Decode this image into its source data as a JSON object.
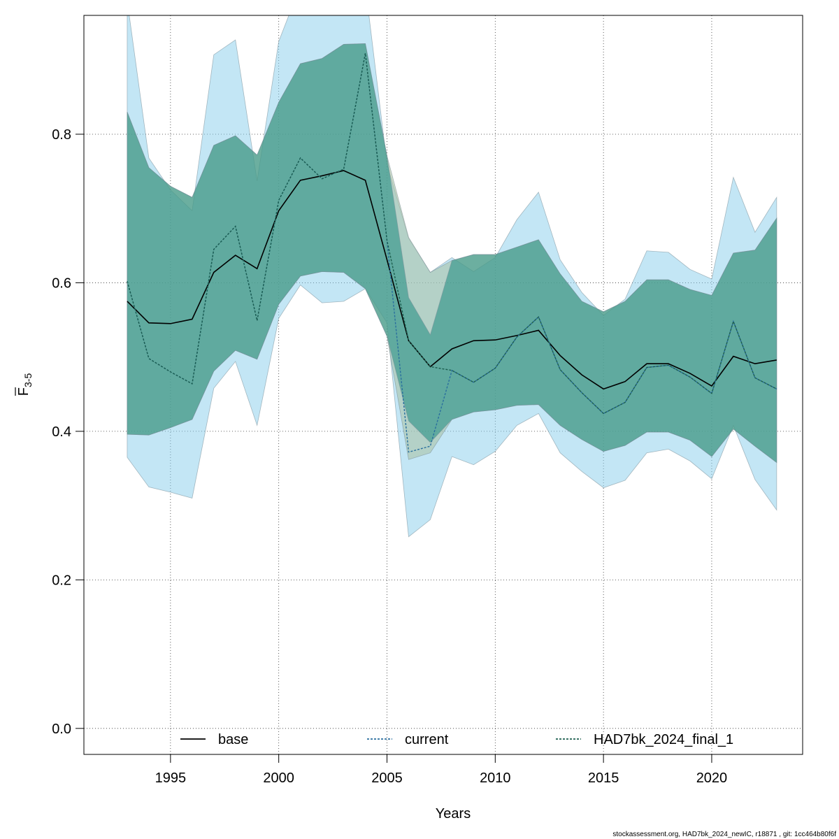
{
  "chart_data": {
    "type": "line",
    "xlabel": "Years",
    "ylabel_main": "F",
    "ylabel_sub": "3-5",
    "xlim": [
      1991.0,
      2024.2
    ],
    "ylim": [
      -0.035,
      0.96
    ],
    "xticks": [
      1995,
      2000,
      2005,
      2010,
      2015,
      2020
    ],
    "xtick_labels": [
      "1995",
      "2000",
      "2005",
      "2010",
      "2015",
      "2020"
    ],
    "yticks": [
      0.0,
      0.2,
      0.4,
      0.6,
      0.8
    ],
    "ytick_labels": [
      "0.0",
      "0.2",
      "0.4",
      "0.6",
      "0.8"
    ],
    "grid": true,
    "legend_position": "bottom",
    "x": [
      1993,
      1994,
      1995,
      1996,
      1997,
      1998,
      1999,
      2000,
      2001,
      2002,
      2003,
      2004,
      2005,
      2006,
      2007,
      2008,
      2009,
      2010,
      2011,
      2012,
      2013,
      2014,
      2015,
      2016,
      2017,
      2018,
      2019,
      2020,
      2021,
      2022,
      2023
    ],
    "bands": [
      {
        "name": "base",
        "color": "#87ceeb",
        "lower": [
          0.365,
          0.325,
          0.318,
          0.31,
          0.458,
          0.494,
          0.408,
          0.552,
          0.597,
          0.573,
          0.575,
          0.592,
          0.546,
          0.258,
          0.281,
          0.366,
          0.355,
          0.373,
          0.408,
          0.424,
          0.371,
          0.346,
          0.324,
          0.334,
          0.371,
          0.376,
          0.36,
          0.336,
          0.408,
          0.335,
          0.294
        ],
        "upper": [
          0.98,
          0.768,
          0.725,
          0.697,
          0.907,
          0.927,
          0.737,
          0.925,
          1.0,
          1.0,
          1.0,
          1.0,
          0.76,
          0.66,
          0.614,
          0.634,
          0.615,
          0.634,
          0.685,
          0.722,
          0.631,
          0.587,
          0.556,
          0.578,
          0.643,
          0.641,
          0.618,
          0.605,
          0.742,
          0.668,
          0.715
        ]
      },
      {
        "name": "current",
        "color": "#a7c0a0",
        "lower": [
          0.396,
          0.395,
          0.405,
          0.416,
          0.481,
          0.509,
          0.497,
          0.571,
          0.609,
          0.615,
          0.614,
          0.592,
          0.528,
          0.362,
          0.371,
          0.416,
          0.426,
          0.429,
          0.435,
          0.436,
          0.408,
          0.389,
          0.373,
          0.381,
          0.399,
          0.399,
          0.388,
          0.366,
          0.403,
          0.38,
          0.358
        ],
        "upper": [
          0.83,
          0.755,
          0.73,
          0.715,
          0.785,
          0.798,
          0.772,
          0.843,
          0.895,
          0.902,
          0.921,
          0.922,
          0.771,
          0.661,
          0.614,
          0.63,
          0.638,
          0.638,
          0.648,
          0.658,
          0.612,
          0.575,
          0.561,
          0.575,
          0.604,
          0.604,
          0.591,
          0.583,
          0.64,
          0.644,
          0.687
        ]
      },
      {
        "name": "HAD7bk_2024_final_1",
        "color": "#1b8a7e",
        "lower": [
          0.396,
          0.395,
          0.405,
          0.416,
          0.481,
          0.509,
          0.497,
          0.571,
          0.609,
          0.615,
          0.614,
          0.592,
          0.528,
          0.414,
          0.385,
          0.416,
          0.426,
          0.429,
          0.435,
          0.436,
          0.408,
          0.389,
          0.373,
          0.381,
          0.399,
          0.399,
          0.388,
          0.366,
          0.403,
          0.38,
          0.358
        ],
        "upper": [
          0.83,
          0.755,
          0.73,
          0.715,
          0.785,
          0.798,
          0.772,
          0.843,
          0.895,
          0.902,
          0.921,
          0.922,
          0.771,
          0.58,
          0.53,
          0.63,
          0.638,
          0.638,
          0.648,
          0.658,
          0.612,
          0.575,
          0.561,
          0.575,
          0.604,
          0.604,
          0.591,
          0.583,
          0.64,
          0.644,
          0.687
        ]
      }
    ],
    "series": [
      {
        "name": "base",
        "color": "#000000",
        "dash": "solid",
        "values": [
          0.575,
          0.546,
          0.545,
          0.551,
          0.614,
          0.637,
          0.619,
          0.697,
          0.738,
          0.744,
          0.751,
          0.738,
          0.631,
          0.522,
          0.487,
          0.511,
          0.522,
          0.523,
          0.529,
          0.536,
          0.502,
          0.476,
          0.457,
          0.467,
          0.491,
          0.491,
          0.478,
          0.461,
          0.501,
          0.491,
          0.496
        ]
      },
      {
        "name": "current",
        "color": "#2a6f9e",
        "dash": "dotted",
        "values": [
          0.602,
          0.498,
          0.48,
          0.464,
          0.645,
          0.676,
          0.549,
          0.711,
          0.768,
          0.74,
          0.753,
          0.909,
          0.657,
          0.372,
          0.38,
          0.482,
          0.466,
          0.485,
          0.527,
          0.554,
          0.483,
          0.452,
          0.424,
          0.439,
          0.486,
          0.489,
          0.473,
          0.451,
          0.548,
          0.472,
          0.457
        ]
      },
      {
        "name": "HAD7bk_2024_final_1",
        "color": "#1c5e4f",
        "dash": "dotted",
        "values": [
          0.602,
          0.498,
          0.48,
          0.464,
          0.645,
          0.676,
          0.549,
          0.711,
          0.768,
          0.74,
          0.753,
          0.909,
          0.657,
          0.522,
          0.487,
          0.482,
          0.466,
          0.485,
          0.527,
          0.554,
          0.483,
          0.452,
          0.424,
          0.439,
          0.486,
          0.489,
          0.473,
          0.451,
          0.548,
          0.472,
          0.457
        ]
      }
    ],
    "legend": [
      {
        "label": "base",
        "color": "#000000",
        "dash": "solid"
      },
      {
        "label": "current",
        "color": "#2a6f9e",
        "dash": "dotted"
      },
      {
        "label": "HAD7bk_2024_final_1",
        "color": "#1c5e4f",
        "dash": "dotted"
      }
    ]
  },
  "footer": "stockassessment.org, HAD7bk_2024_newIC, r18871 , git: 1cc464b80f6f"
}
